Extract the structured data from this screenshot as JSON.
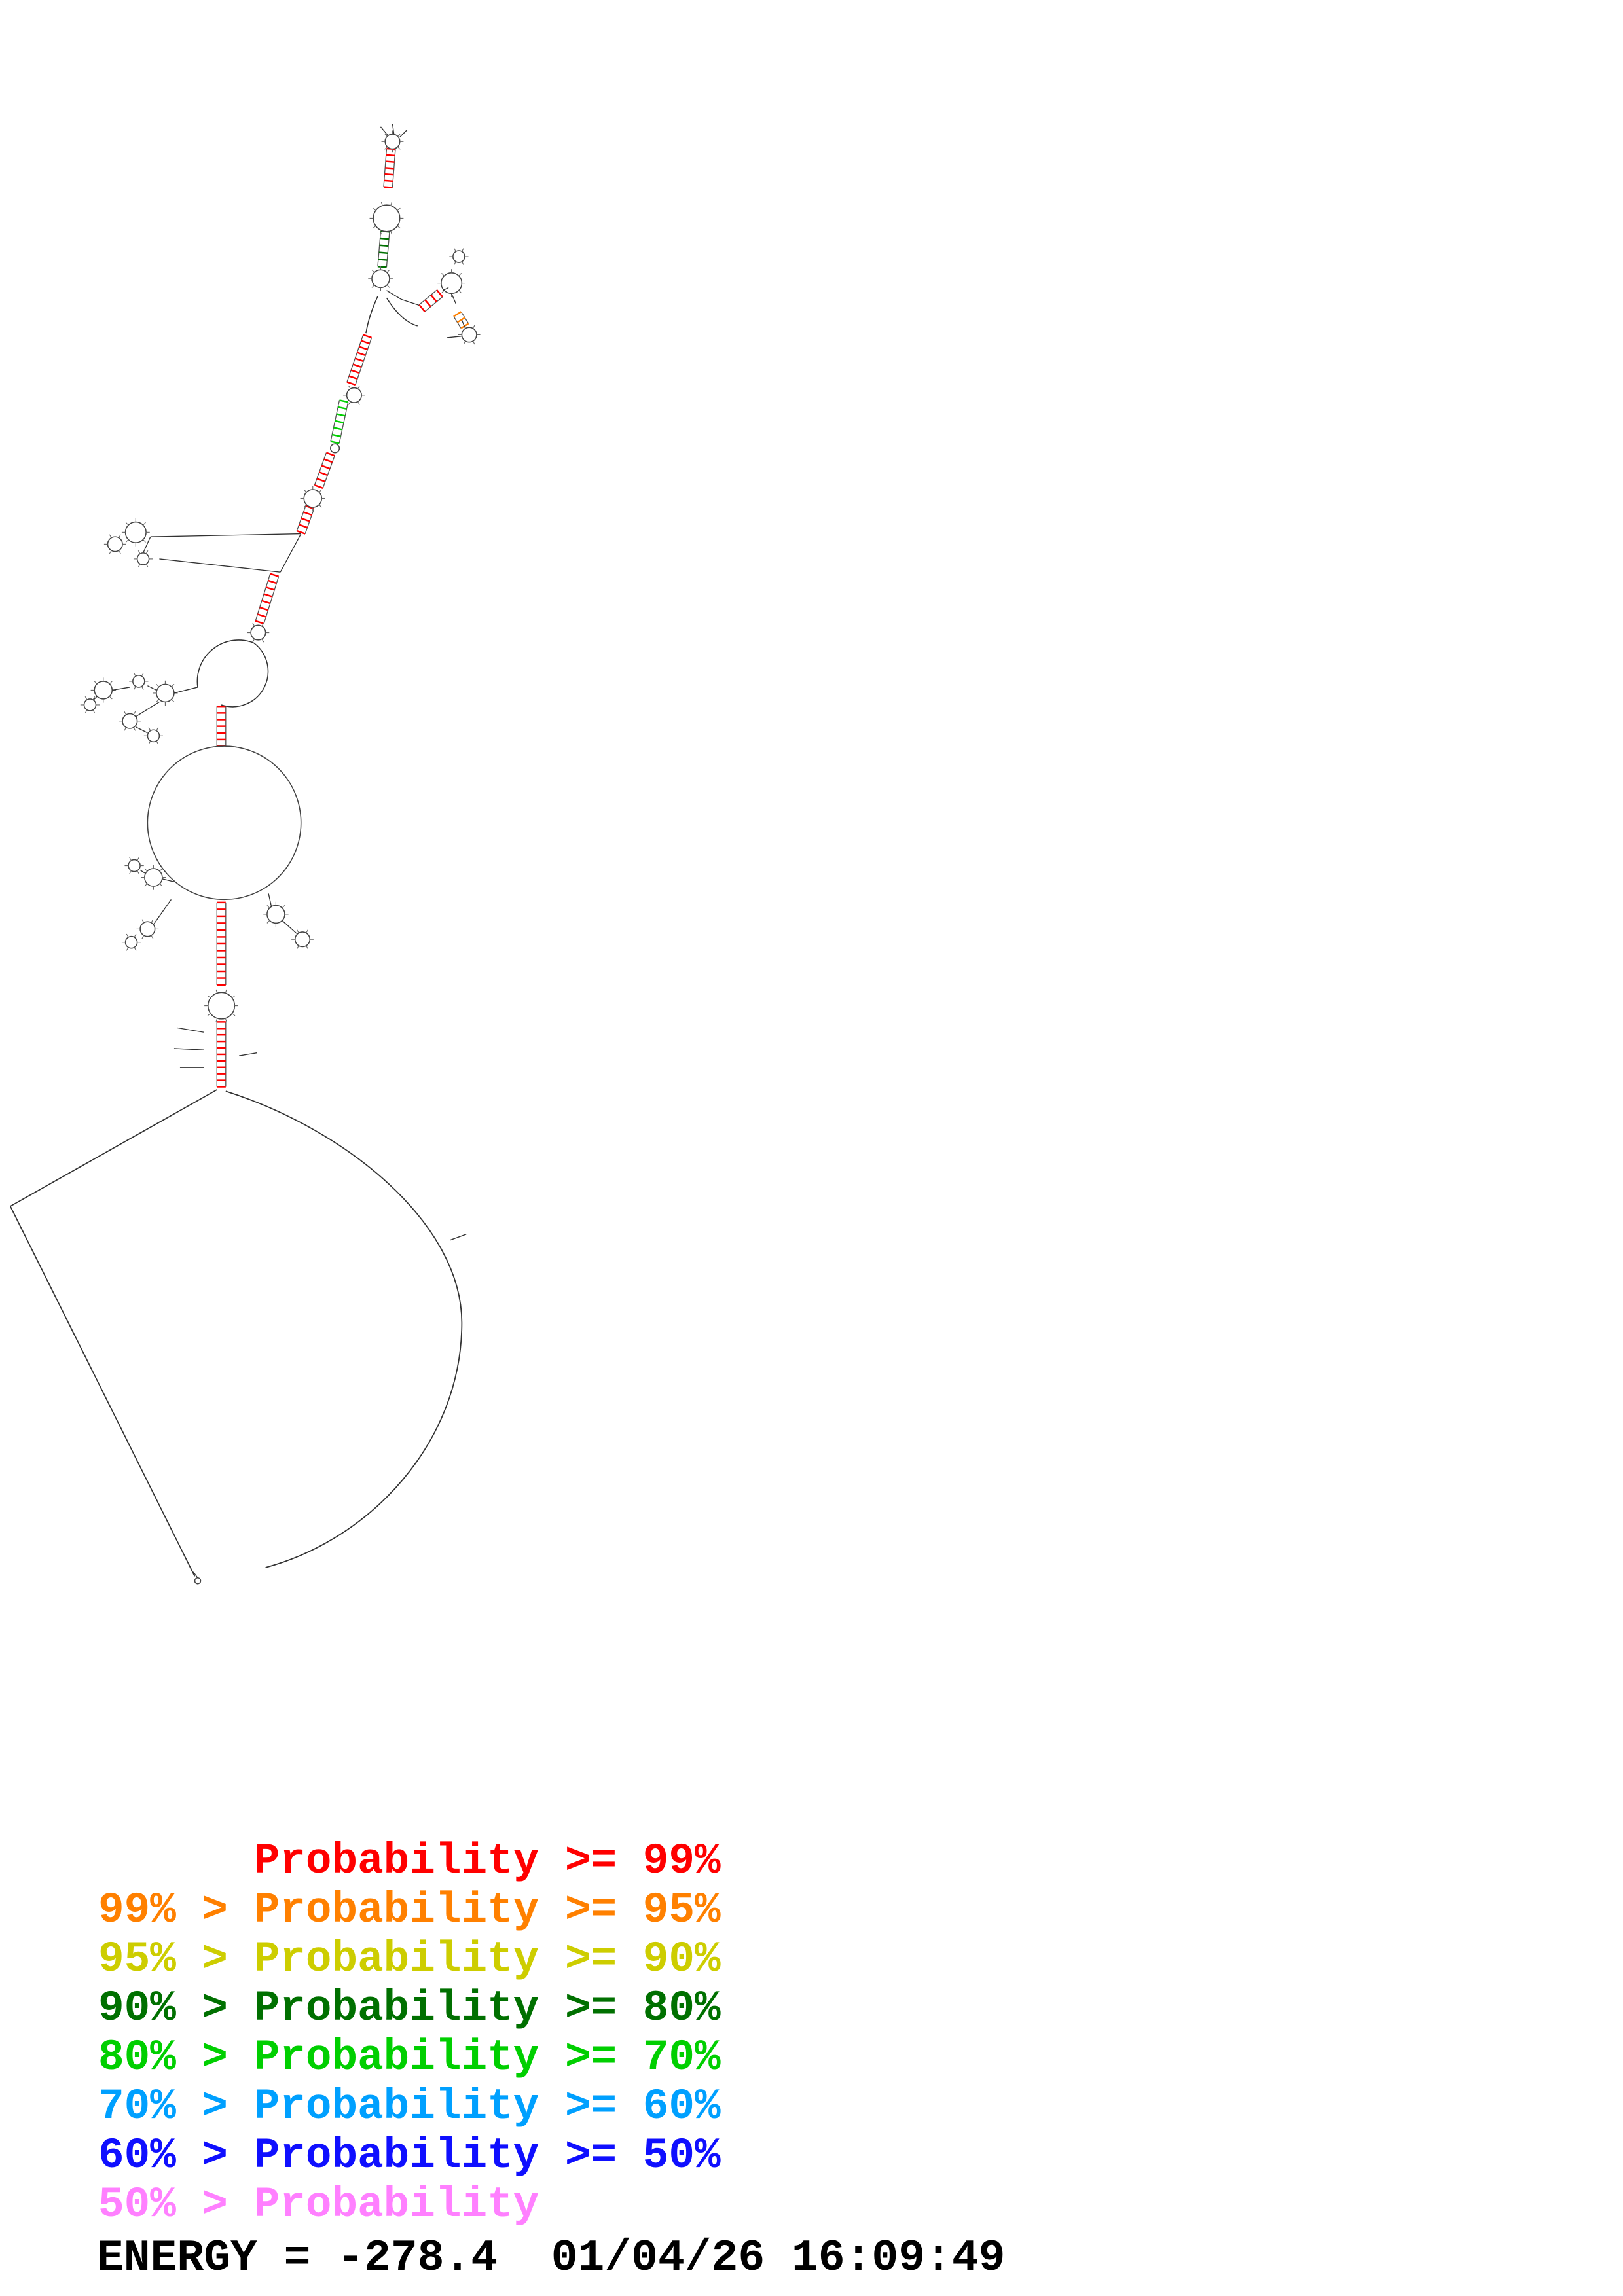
{
  "page": {
    "background": "#ffffff"
  },
  "legend": {
    "entries": [
      {
        "label": "      Probability >= 99%",
        "color": "#ff0000"
      },
      {
        "label": "99% > Probability >= 95%",
        "color": "#ff8000"
      },
      {
        "label": "95% > Probability >= 90%",
        "color": "#cdcd00"
      },
      {
        "label": "90% > Probability >= 80%",
        "color": "#007000"
      },
      {
        "label": "80% > Probability >= 70%",
        "color": "#00cf00"
      },
      {
        "label": "70% > Probability >= 60%",
        "color": "#00a0ff"
      },
      {
        "label": "60% > Probability >= 50%",
        "color": "#0f0fff"
      },
      {
        "label": "50% > Probability",
        "color": "#ff80ff"
      }
    ]
  },
  "footer": {
    "energy_line": "ENERGY = -278.4  01/04/26 16:09:49"
  }
}
